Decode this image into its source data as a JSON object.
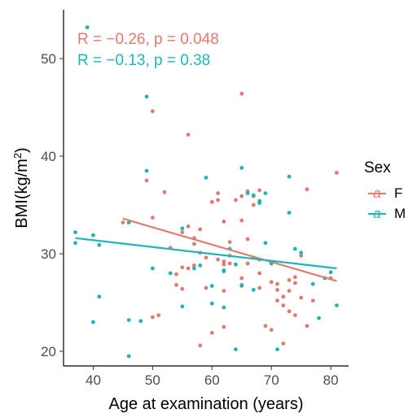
{
  "chart_data": {
    "type": "scatter",
    "xlabel": "Age at examination (years)",
    "ylabel_base": "BMI(kg/m",
    "ylabel_sup": "2",
    "ylabel_close": ")",
    "xlim": [
      35,
      83
    ],
    "ylim": [
      18.5,
      55
    ],
    "x_ticks": [
      40,
      50,
      60,
      70,
      80
    ],
    "x_tick_labels": [
      "40",
      "50",
      "60",
      "70",
      "80"
    ],
    "y_ticks": [
      20,
      30,
      40,
      50
    ],
    "y_tick_labels": [
      "20",
      "30",
      "40",
      "50"
    ],
    "grid": false,
    "legend": {
      "title": "Sex",
      "placement": "right",
      "key_glyph": "a"
    },
    "annotations": [
      {
        "R": "R = −0.26, ",
        "p": "p = 0.048",
        "color": "#E07B6E"
      },
      {
        "R": "R = −0.13, ",
        "p": "p = 0.38",
        "color": "#1FB5B8"
      }
    ],
    "series": [
      {
        "name": "F",
        "color": "#E07B6E",
        "fit": {
          "x": [
            45,
            81
          ],
          "y": [
            33.6,
            27.2
          ]
        },
        "points": [
          [
            45,
            33.2
          ],
          [
            50,
            44.6
          ],
          [
            49,
            37.5
          ],
          [
            52,
            36.3
          ],
          [
            50,
            33.7
          ],
          [
            53,
            30.6
          ],
          [
            50,
            23.5
          ],
          [
            51,
            23.7
          ],
          [
            54,
            27.9
          ],
          [
            54,
            26.8
          ],
          [
            55,
            28.6
          ],
          [
            55,
            26.4
          ],
          [
            55,
            32.2
          ],
          [
            56,
            42.2
          ],
          [
            56,
            32.8
          ],
          [
            56,
            28.5
          ],
          [
            57,
            31.6
          ],
          [
            57,
            31.0
          ],
          [
            57,
            28.8
          ],
          [
            58,
            32.5
          ],
          [
            58,
            30.1
          ],
          [
            58,
            20.6
          ],
          [
            59,
            26.5
          ],
          [
            59,
            29.6
          ],
          [
            60,
            35.3
          ],
          [
            61,
            36.2
          ],
          [
            61,
            35.5
          ],
          [
            61,
            29.4
          ],
          [
            62,
            33.3
          ],
          [
            62,
            29.2
          ],
          [
            62,
            28.9
          ],
          [
            62,
            26.2
          ],
          [
            62,
            22.5
          ],
          [
            63,
            31.2
          ],
          [
            63,
            29.8
          ],
          [
            63,
            29.0
          ],
          [
            64,
            35.5
          ],
          [
            65,
            46.4
          ],
          [
            65,
            35.9
          ],
          [
            65,
            33.4
          ],
          [
            65,
            27.5
          ],
          [
            65,
            26.7
          ],
          [
            66,
            36.4
          ],
          [
            66,
            31.5
          ],
          [
            66,
            29.0
          ],
          [
            67,
            35.9
          ],
          [
            67,
            35.0
          ],
          [
            67,
            29.6
          ],
          [
            68,
            36.5
          ],
          [
            68,
            29.4
          ],
          [
            68,
            28.0
          ],
          [
            68,
            26.5
          ],
          [
            69,
            22.6
          ],
          [
            70,
            27.1
          ],
          [
            70,
            22.2
          ],
          [
            71,
            26.9
          ],
          [
            71,
            26.3
          ],
          [
            71,
            25.2
          ],
          [
            72,
            20.8
          ],
          [
            72,
            25.6
          ],
          [
            72,
            24.7
          ],
          [
            73,
            27.3
          ],
          [
            73,
            26.2
          ],
          [
            73,
            24.1
          ],
          [
            74,
            27.6
          ],
          [
            74,
            27.0
          ],
          [
            74,
            23.7
          ],
          [
            75,
            25.5
          ],
          [
            75,
            29.8
          ],
          [
            76,
            36.6
          ],
          [
            76,
            22.6
          ],
          [
            77,
            25.2
          ],
          [
            80,
            27.5
          ],
          [
            81,
            38.3
          ],
          [
            60,
            21.9
          ]
        ]
      },
      {
        "name": "M",
        "color": "#1FB5B8",
        "fit": {
          "x": [
            37,
            81
          ],
          "y": [
            31.6,
            28.5
          ]
        },
        "points": [
          [
            37,
            32.2
          ],
          [
            37,
            31.1
          ],
          [
            39,
            53.2
          ],
          [
            40,
            31.9
          ],
          [
            40,
            23.0
          ],
          [
            41,
            30.9
          ],
          [
            41,
            25.6
          ],
          [
            46,
            23.2
          ],
          [
            46,
            19.5
          ],
          [
            46,
            33.2
          ],
          [
            48,
            23.1
          ],
          [
            49,
            46.1
          ],
          [
            49,
            38.5
          ],
          [
            50,
            28.5
          ],
          [
            53,
            28.0
          ],
          [
            55,
            32.6
          ],
          [
            55,
            24.6
          ],
          [
            57,
            28.5
          ],
          [
            58,
            28.8
          ],
          [
            59,
            37.8
          ],
          [
            60,
            26.7
          ],
          [
            60,
            24.9
          ],
          [
            62,
            28.3
          ],
          [
            62,
            28.2
          ],
          [
            62,
            24.5
          ],
          [
            63,
            30.5
          ],
          [
            64,
            20.2
          ],
          [
            64,
            28.9
          ],
          [
            65,
            38.8
          ],
          [
            65,
            26.8
          ],
          [
            66,
            36.2
          ],
          [
            67,
            26.3
          ],
          [
            67,
            36.0
          ],
          [
            68,
            35.4
          ],
          [
            68,
            35.2
          ],
          [
            69,
            36.2
          ],
          [
            69,
            31.1
          ],
          [
            70,
            29.0
          ],
          [
            71,
            20.2
          ],
          [
            73,
            37.9
          ],
          [
            73,
            34.2
          ],
          [
            74,
            30.5
          ],
          [
            75,
            30.1
          ],
          [
            77,
            26.9
          ],
          [
            78,
            23.4
          ],
          [
            79,
            27.5
          ],
          [
            80,
            28.1
          ],
          [
            81,
            24.7
          ]
        ]
      }
    ]
  }
}
